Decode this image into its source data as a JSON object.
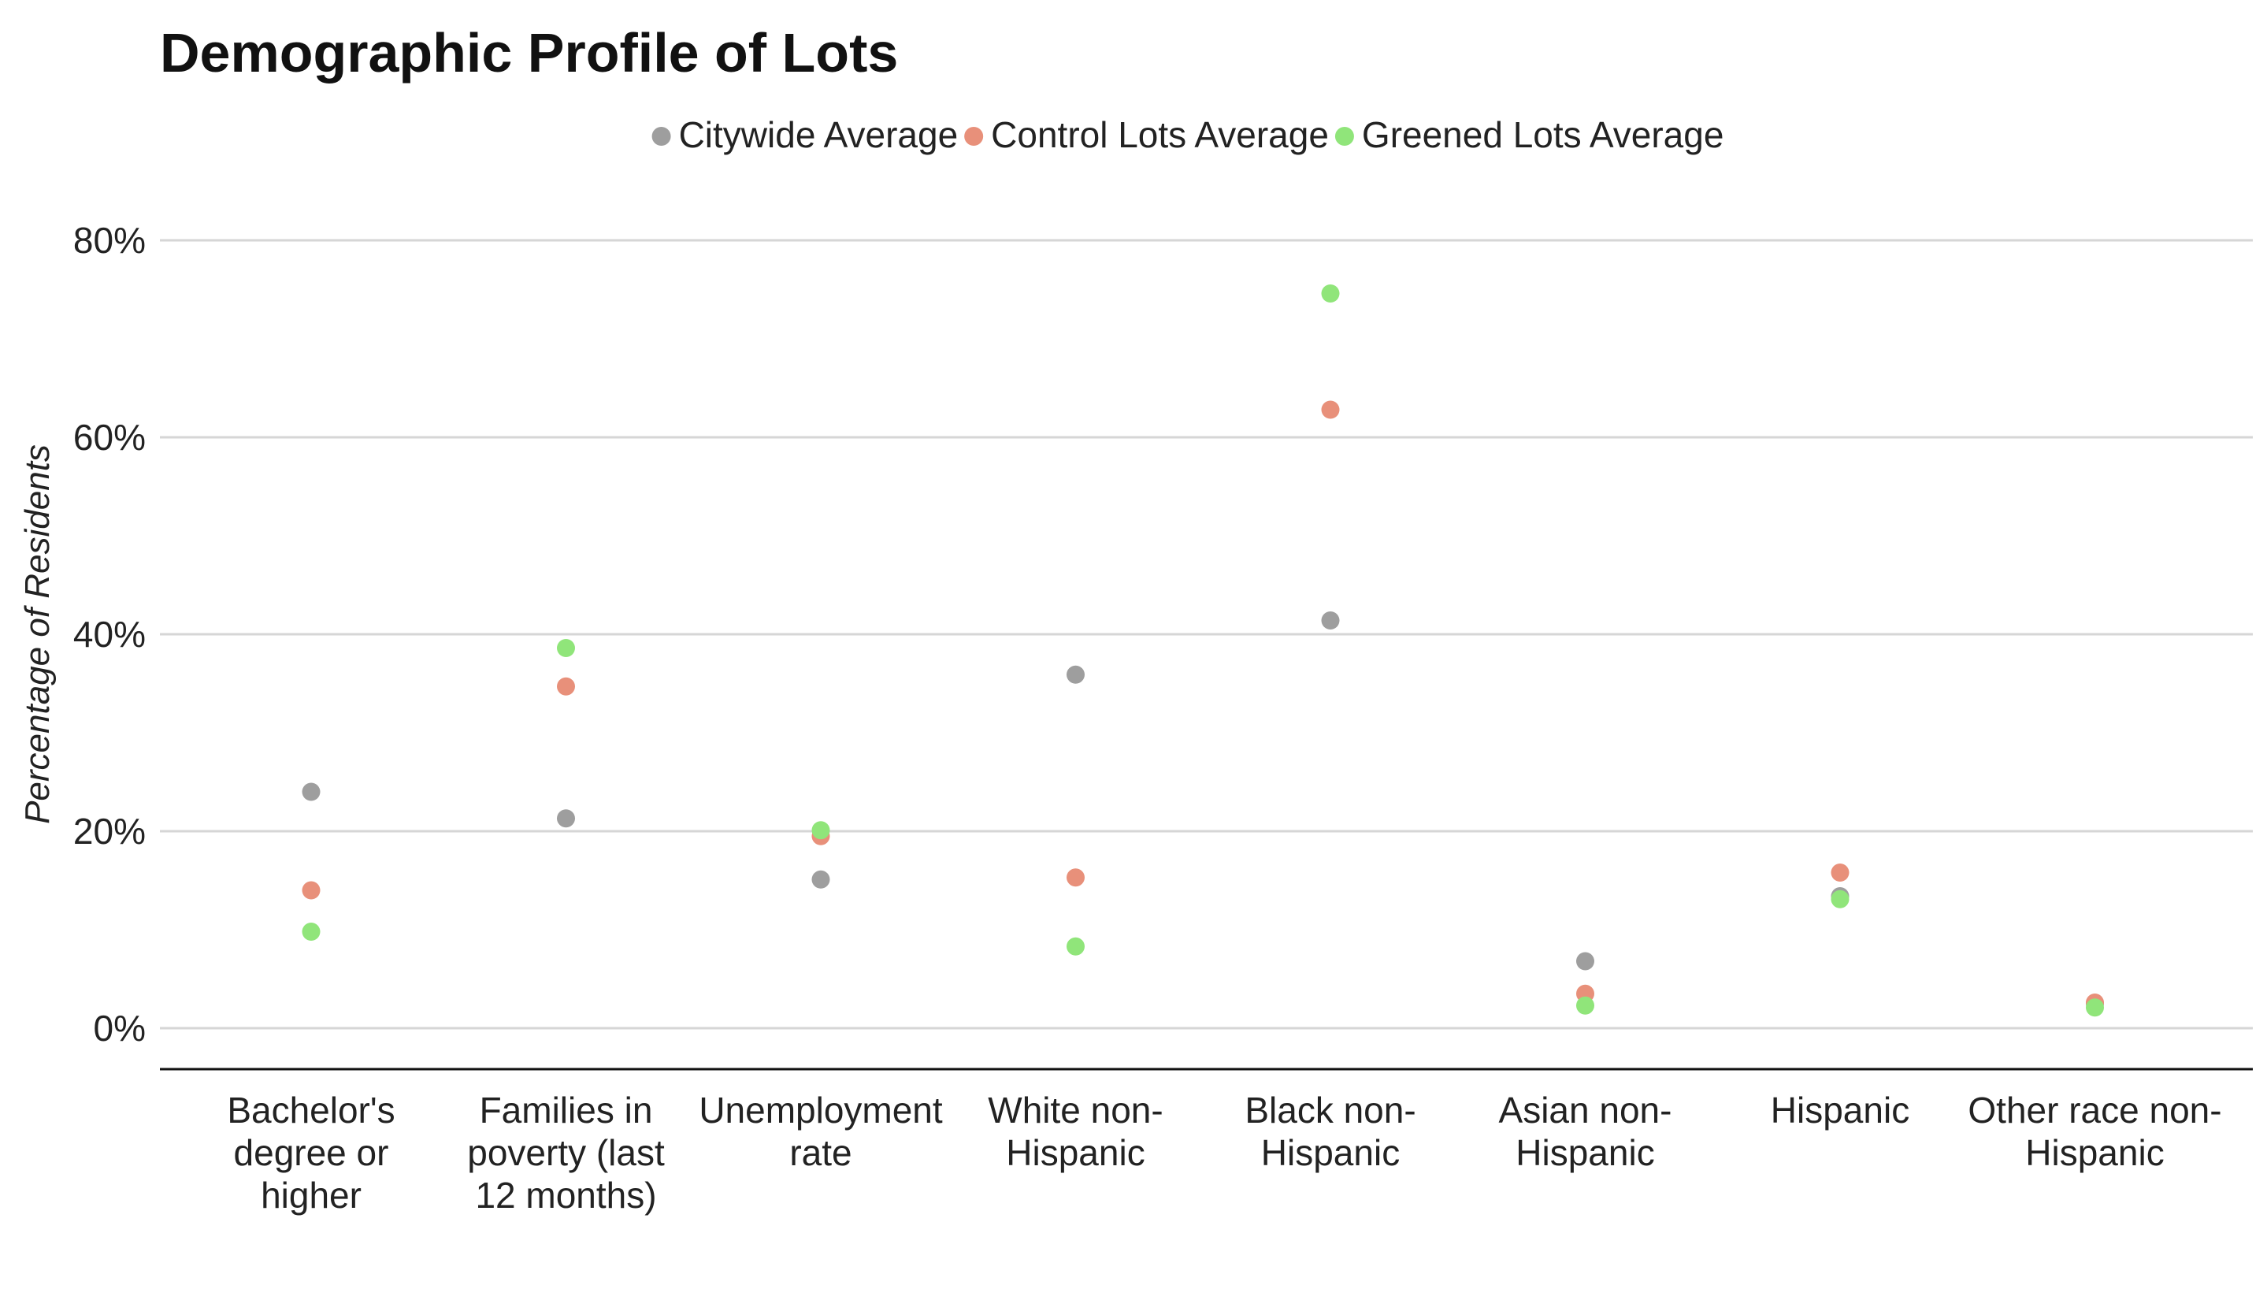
{
  "chart_data": {
    "type": "scatter",
    "title": "Demographic Profile of Lots",
    "ylabel": "Percentage of Residents",
    "xlabel": "",
    "ylim": [
      0,
      80
    ],
    "ytick_values": [
      0,
      20,
      40,
      60,
      80
    ],
    "ytick_labels": [
      "0%",
      "20%",
      "40%",
      "60%",
      "80%"
    ],
    "grid": "horizontal",
    "legend_position": "top",
    "categories": [
      [
        "Bachelor's",
        "degree or",
        "higher"
      ],
      [
        "Families in",
        "poverty (last",
        "12 months)"
      ],
      [
        "Unemployment",
        "rate"
      ],
      [
        "White non-",
        "Hispanic"
      ],
      [
        "Black non-",
        "Hispanic"
      ],
      [
        "Asian non-",
        "Hispanic"
      ],
      [
        "Hispanic"
      ],
      [
        "Other race non-",
        "Hispanic"
      ]
    ],
    "series": [
      {
        "name": "Citywide Average",
        "color": "#9e9e9e",
        "values": [
          24.0,
          21.3,
          15.1,
          35.9,
          41.4,
          6.8,
          13.4,
          2.5
        ]
      },
      {
        "name": "Control Lots Average",
        "color": "#e8907a",
        "values": [
          14.0,
          34.7,
          19.5,
          15.3,
          62.8,
          3.5,
          15.8,
          2.6
        ]
      },
      {
        "name": "Greened Lots Average",
        "color": "#90e57a",
        "values": [
          9.8,
          38.6,
          20.1,
          8.3,
          74.6,
          2.3,
          13.1,
          2.1
        ]
      }
    ]
  }
}
